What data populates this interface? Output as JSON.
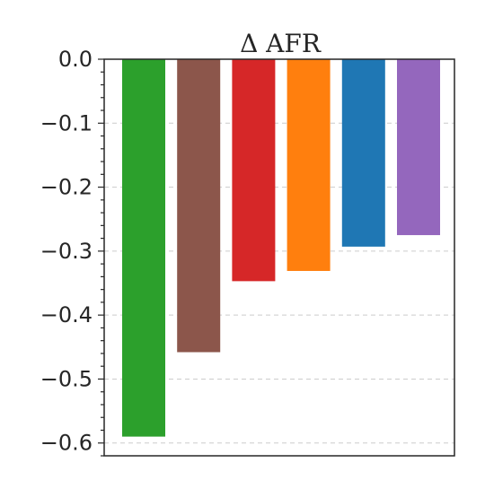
{
  "chart_data": {
    "type": "bar",
    "title": "Δ AFR",
    "xlabel": "",
    "ylabel": "",
    "ylim": [
      -0.62,
      0.0
    ],
    "yticks": [
      0.0,
      -0.1,
      -0.2,
      -0.3,
      -0.4,
      -0.5,
      -0.6
    ],
    "ytick_labels": [
      "0.0",
      "−0.1",
      "−0.2",
      "−0.3",
      "−0.4",
      "−0.5",
      "−0.6"
    ],
    "grid": "horizontal dashed",
    "values": [
      -0.59,
      -0.458,
      -0.347,
      -0.331,
      -0.293,
      -0.275
    ],
    "colors": [
      "#2ca02c",
      "#8c564b",
      "#d62728",
      "#ff7f0e",
      "#1f77b4",
      "#9467bd"
    ]
  }
}
